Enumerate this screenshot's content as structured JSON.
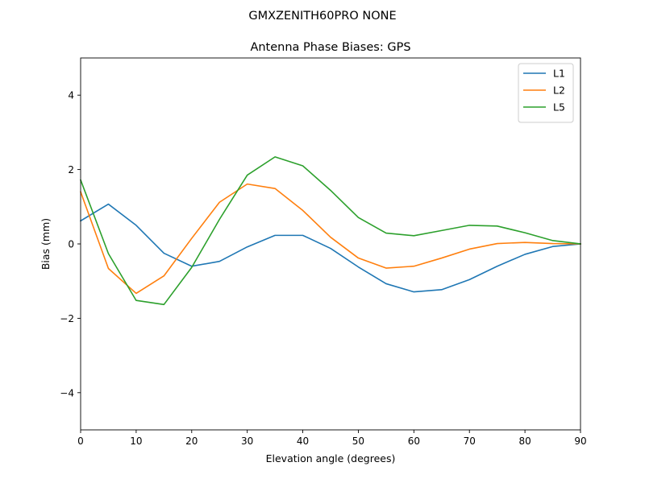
{
  "figure": {
    "suptitle": "GMXZENITH60PRO  NONE"
  },
  "chart_data": {
    "type": "line",
    "title": "Antenna Phase Biases: GPS",
    "xlabel": "Elevation angle (degrees)",
    "ylabel": "Bias (mm)",
    "xlim": [
      0,
      90
    ],
    "ylim": [
      -5,
      5
    ],
    "xticks": [
      0,
      10,
      20,
      30,
      40,
      50,
      60,
      70,
      80,
      90
    ],
    "yticks": [
      -4,
      -2,
      0,
      2,
      4
    ],
    "ytick_labels": [
      "−4",
      "−2",
      "0",
      "2",
      "4"
    ],
    "grid": false,
    "legend_position": "top-right",
    "x": [
      0,
      5,
      10,
      15,
      20,
      25,
      30,
      35,
      40,
      45,
      50,
      55,
      60,
      65,
      70,
      75,
      80,
      85,
      90
    ],
    "series": [
      {
        "name": "L1",
        "color": "#1f77b4",
        "values": [
          0.62,
          1.07,
          0.5,
          -0.25,
          -0.6,
          -0.47,
          -0.08,
          0.23,
          0.23,
          -0.12,
          -0.62,
          -1.07,
          -1.29,
          -1.23,
          -0.96,
          -0.6,
          -0.28,
          -0.07,
          0.0
        ]
      },
      {
        "name": "L2",
        "color": "#ff7f0e",
        "values": [
          1.4,
          -0.66,
          -1.33,
          -0.86,
          0.15,
          1.12,
          1.61,
          1.49,
          0.9,
          0.18,
          -0.38,
          -0.65,
          -0.6,
          -0.38,
          -0.14,
          0.01,
          0.04,
          0.01,
          0.0
        ]
      },
      {
        "name": "L5",
        "color": "#2ca02c",
        "values": [
          1.72,
          -0.26,
          -1.52,
          -1.63,
          -0.63,
          0.66,
          1.85,
          2.34,
          2.1,
          1.44,
          0.71,
          0.29,
          0.22,
          0.36,
          0.5,
          0.48,
          0.3,
          0.09,
          0.0
        ]
      }
    ]
  }
}
